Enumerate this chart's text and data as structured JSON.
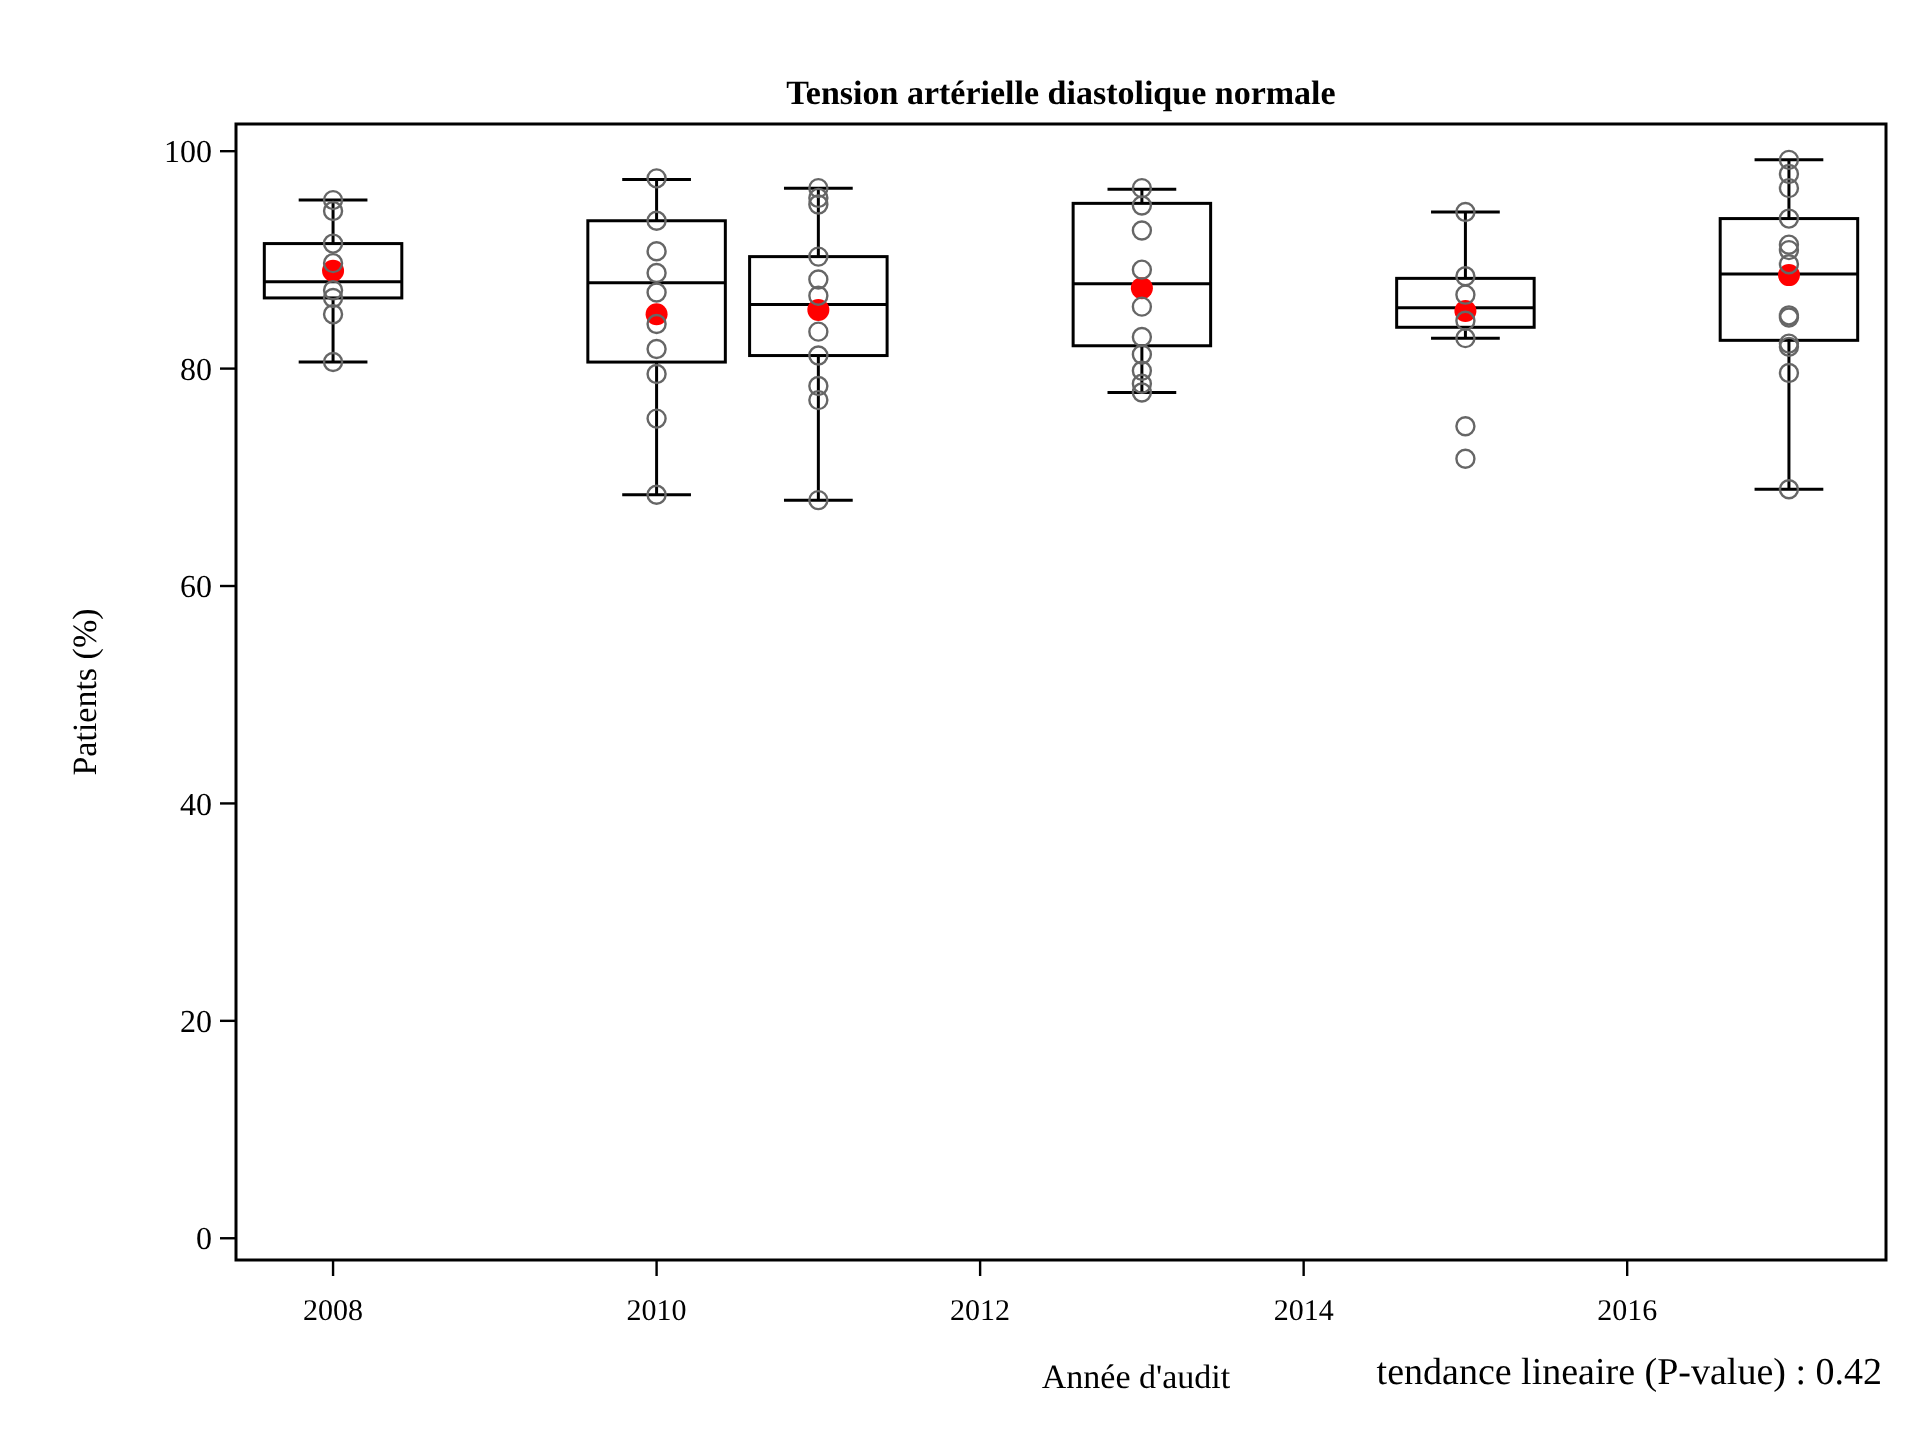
{
  "chart_data": {
    "type": "box",
    "title": "Tension artérielle diastolique normale",
    "xlabel": "Année d'audit",
    "ylabel": "Patients (%)",
    "annotations": [
      "tendance lineaire (P-value) : 0.42"
    ],
    "x": [
      2008,
      2010,
      2011,
      2013,
      2015,
      2017
    ],
    "xlim": [
      2007.4,
      2017.6
    ],
    "xticks": [
      2008,
      2010,
      2012,
      2014,
      2016
    ],
    "ylim": [
      -2,
      102.5
    ],
    "yticks": [
      0,
      20,
      40,
      60,
      80,
      100
    ],
    "grid": false,
    "marker": "circle",
    "series": [
      {
        "color": "#000000",
        "boxes": [
          {
            "low": 80.6,
            "q1": 86.5,
            "median": 88.0,
            "q3": 91.5,
            "high": 95.5,
            "mean": 89.0
          },
          {
            "low": 68.4,
            "q1": 80.6,
            "median": 87.9,
            "q3": 93.6,
            "high": 97.4,
            "mean": 85.0
          },
          {
            "low": 67.9,
            "q1": 81.2,
            "median": 85.9,
            "q3": 90.3,
            "high": 96.6,
            "mean": 85.4
          },
          {
            "low": 77.8,
            "q1": 82.1,
            "median": 87.8,
            "q3": 95.2,
            "high": 96.5,
            "mean": 87.4
          },
          {
            "low": 82.8,
            "q1": 83.8,
            "median": 85.6,
            "q3": 88.3,
            "high": 94.4,
            "mean": 85.3,
            "outliers": [
              74.7,
              71.7
            ]
          },
          {
            "low": 68.9,
            "q1": 82.6,
            "median": 88.7,
            "q3": 93.8,
            "high": 99.2,
            "mean": 88.6
          }
        ]
      },
      {
        "type": "scatter",
        "color": "#666666",
        "x": [
          2008,
          2008,
          2008,
          2008,
          2008,
          2008,
          2008,
          2008,
          2010,
          2010,
          2010,
          2010,
          2010,
          2010,
          2010,
          2010,
          2010,
          2010,
          2011,
          2011,
          2011,
          2011,
          2011,
          2011,
          2011,
          2011,
          2011,
          2011,
          2011,
          2013,
          2013,
          2013,
          2013,
          2013,
          2013,
          2013,
          2013,
          2013,
          2013,
          2015,
          2015,
          2015,
          2015,
          2015,
          2017,
          2017,
          2017,
          2017,
          2017,
          2017,
          2017,
          2017,
          2017,
          2017,
          2017,
          2017,
          2017
        ],
        "values": [
          95.5,
          94.5,
          91.5,
          89.7,
          87.2,
          86.5,
          85.0,
          80.6,
          97.5,
          93.6,
          90.8,
          88.8,
          87.0,
          84.1,
          81.8,
          79.5,
          75.4,
          68.4,
          96.6,
          95.7,
          95.1,
          90.3,
          88.2,
          86.7,
          83.4,
          81.2,
          78.4,
          77.1,
          67.9,
          96.6,
          95.0,
          92.7,
          89.1,
          85.7,
          82.9,
          81.3,
          79.8,
          78.6,
          77.8,
          94.4,
          88.5,
          86.8,
          84.4,
          82.8,
          99.2,
          97.9,
          96.6,
          93.8,
          91.4,
          90.9,
          89.6,
          84.9,
          84.7,
          82.3,
          82.0,
          79.6,
          68.9
        ]
      }
    ]
  }
}
